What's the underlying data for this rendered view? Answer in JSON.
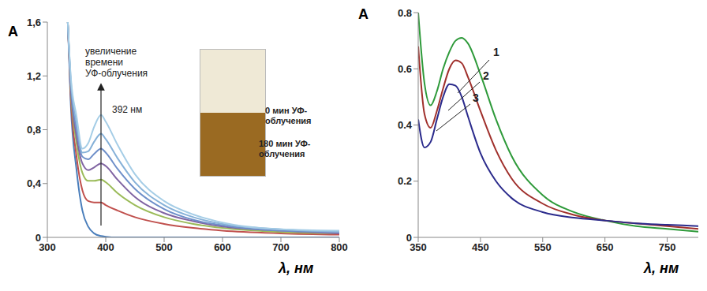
{
  "chart_data": [
    {
      "type": "line",
      "x_label": "λ, нм",
      "y_label": "A",
      "annotations": [
        "увеличение времени УФ-облучения",
        "392 нм",
        "0 мин УФ-облучения",
        "180 мин УФ-облучения"
      ],
      "x": [
        335,
        340,
        350,
        360,
        370,
        380,
        392,
        400,
        420,
        450,
        500,
        550,
        600,
        700,
        800
      ],
      "series": [
        {
          "color": "#4a7ebb",
          "values": [
            1.6,
            1.0,
            0.5,
            0.2,
            0.08,
            0.03,
            0.01,
            0.005,
            0,
            0,
            0,
            0,
            0,
            0,
            0
          ]
        },
        {
          "color": "#c0504d",
          "values": [
            1.6,
            1.05,
            0.6,
            0.35,
            0.27,
            0.26,
            0.26,
            0.24,
            0.2,
            0.15,
            0.1,
            0.07,
            0.05,
            0.03,
            0.02
          ]
        },
        {
          "color": "#9bbb59",
          "values": [
            1.6,
            1.1,
            0.7,
            0.48,
            0.42,
            0.42,
            0.43,
            0.41,
            0.33,
            0.24,
            0.15,
            0.1,
            0.07,
            0.04,
            0.03
          ]
        },
        {
          "color": "#8064a2",
          "values": [
            1.6,
            1.12,
            0.75,
            0.55,
            0.5,
            0.52,
            0.55,
            0.53,
            0.43,
            0.3,
            0.18,
            0.12,
            0.08,
            0.05,
            0.03
          ]
        },
        {
          "color": "#6e8fc9",
          "values": [
            1.6,
            1.15,
            0.8,
            0.6,
            0.58,
            0.62,
            0.66,
            0.63,
            0.51,
            0.36,
            0.21,
            0.13,
            0.09,
            0.05,
            0.04
          ]
        },
        {
          "color": "#86b1d8",
          "values": [
            1.6,
            1.18,
            0.85,
            0.63,
            0.64,
            0.71,
            0.77,
            0.73,
            0.59,
            0.41,
            0.24,
            0.15,
            0.1,
            0.06,
            0.04
          ]
        },
        {
          "color": "#a5cde6",
          "values": [
            1.6,
            1.2,
            0.9,
            0.66,
            0.7,
            0.82,
            0.91,
            0.86,
            0.69,
            0.47,
            0.27,
            0.17,
            0.11,
            0.06,
            0.05
          ]
        }
      ],
      "xlim": [
        300,
        800
      ],
      "ylim": [
        0,
        1.6
      ],
      "xticks": [
        300,
        400,
        500,
        600,
        700,
        800
      ],
      "yticks": [
        0,
        {
          "value": 0.4,
          "label": "0,4"
        },
        {
          "value": 0.8,
          "label": "0,8"
        },
        {
          "value": 1.2,
          "label": "1,2"
        },
        {
          "value": 1.6,
          "label": "1,6"
        }
      ]
    },
    {
      "type": "line",
      "x_label": "λ, нм",
      "y_label": "A",
      "x": [
        350,
        360,
        370,
        380,
        390,
        400,
        410,
        420,
        430,
        450,
        475,
        500,
        550,
        600,
        650,
        700,
        750,
        800
      ],
      "series": [
        {
          "name": "1",
          "color": "#2e9a3a",
          "values": [
            0.8,
            0.55,
            0.47,
            0.52,
            0.6,
            0.66,
            0.7,
            0.71,
            0.69,
            0.58,
            0.42,
            0.29,
            0.15,
            0.09,
            0.06,
            0.04,
            0.03,
            0.02
          ]
        },
        {
          "name": "2",
          "color": "#a0302c",
          "values": [
            0.68,
            0.44,
            0.39,
            0.45,
            0.53,
            0.6,
            0.63,
            0.62,
            0.57,
            0.45,
            0.31,
            0.21,
            0.12,
            0.08,
            0.06,
            0.05,
            0.04,
            0.03
          ]
        },
        {
          "name": "3",
          "color": "#2b2b8c",
          "values": [
            0.42,
            0.32,
            0.34,
            0.42,
            0.5,
            0.545,
            0.54,
            0.5,
            0.43,
            0.3,
            0.2,
            0.14,
            0.09,
            0.07,
            0.06,
            0.05,
            0.045,
            0.04
          ]
        }
      ],
      "xlim": [
        350,
        800
      ],
      "ylim": [
        0,
        0.8
      ],
      "xticks": [
        350,
        450,
        550,
        650,
        750
      ],
      "yticks": [
        0,
        0.2,
        0.4,
        0.6,
        0.8
      ]
    }
  ]
}
